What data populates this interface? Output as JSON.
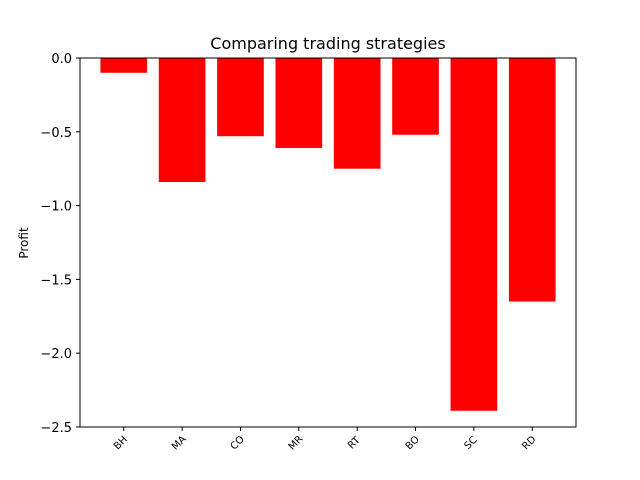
{
  "chart_data": {
    "type": "bar",
    "title": "Comparing trading strategies",
    "xlabel": "",
    "ylabel": "Profit",
    "categories": [
      "BH",
      "MA",
      "CO",
      "MR",
      "RT",
      "BO",
      "SC",
      "RD"
    ],
    "values": [
      -0.1,
      -0.84,
      -0.53,
      -0.61,
      -0.75,
      -0.52,
      -2.39,
      -1.65
    ],
    "ylim": [
      -2.5,
      0.0
    ],
    "yticks": [
      0.0,
      -0.5,
      -1.0,
      -1.5,
      -2.0,
      -2.5
    ],
    "ytick_labels": [
      "0.0",
      "−0.5",
      "−1.0",
      "−1.5",
      "−2.0",
      "−2.5"
    ],
    "bar_color": "#ff0000",
    "grid": false,
    "legend": "none"
  }
}
